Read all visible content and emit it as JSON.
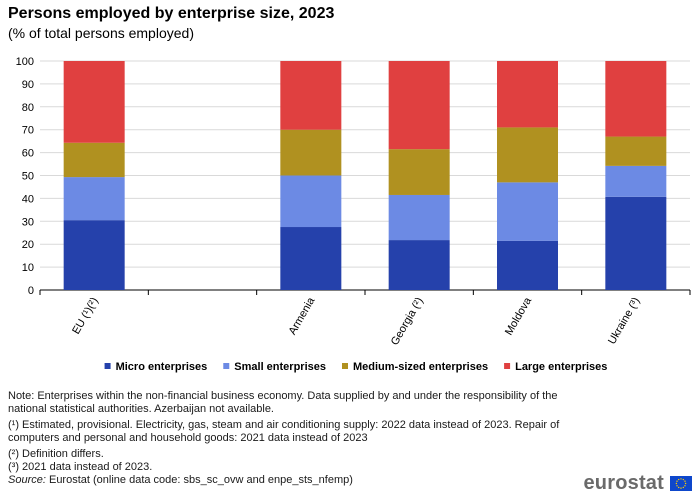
{
  "title": "Persons employed by enterprise size, 2023",
  "subtitle": "(% of total persons employed)",
  "chart_data": {
    "type": "bar",
    "stacked": true,
    "categories": [
      "EU (¹)(²)",
      "",
      "Armenia",
      "Georgia (²)",
      "Moldova",
      "Ukraine (³)"
    ],
    "series": [
      {
        "name": "Micro enterprises",
        "color": "#2541ab",
        "values": [
          30.5,
          null,
          27.5,
          21.8,
          21.5,
          40.7
        ]
      },
      {
        "name": "Small enterprises",
        "color": "#6c8ae4",
        "values": [
          18.8,
          null,
          22.5,
          19.7,
          25.5,
          13.5
        ]
      },
      {
        "name": "Medium-sized enterprises",
        "color": "#b09120",
        "values": [
          15.0,
          null,
          20.0,
          20.0,
          24.0,
          12.8
        ]
      },
      {
        "name": "Large enterprises",
        "color": "#e04040",
        "values": [
          35.7,
          null,
          30.0,
          38.5,
          29.0,
          33.0
        ]
      }
    ],
    "ylim": [
      0,
      100
    ],
    "yticks": [
      0,
      10,
      20,
      30,
      40,
      50,
      60,
      70,
      80,
      90,
      100
    ],
    "grid": true,
    "legend_position": "bottom",
    "xlabel": "",
    "ylabel": ""
  },
  "notes": {
    "note": "Note: Enterprises within the non-financial business economy. Data supplied by and under the responsibility of the national statistical authorities. Azerbaijan not available.",
    "footnote_1": "(¹) Estimated, provisional. Electricity, gas, steam and air conditioning supply: 2022 data instead of 2023. Repair of computers and personal and household goods: 2021 data instead of 2023",
    "footnote_2": "(²) Definition differs.",
    "footnote_3": "(³) 2021 data instead of 2023.",
    "source_label": "Source:",
    "source_text": " Eurostat (online data code: sbs_sc_ovw and enpe_sts_nfemp)"
  },
  "logo": {
    "text": "eurostat",
    "flag_color": "#0e47cb",
    "star_color": "#ffcc00"
  }
}
